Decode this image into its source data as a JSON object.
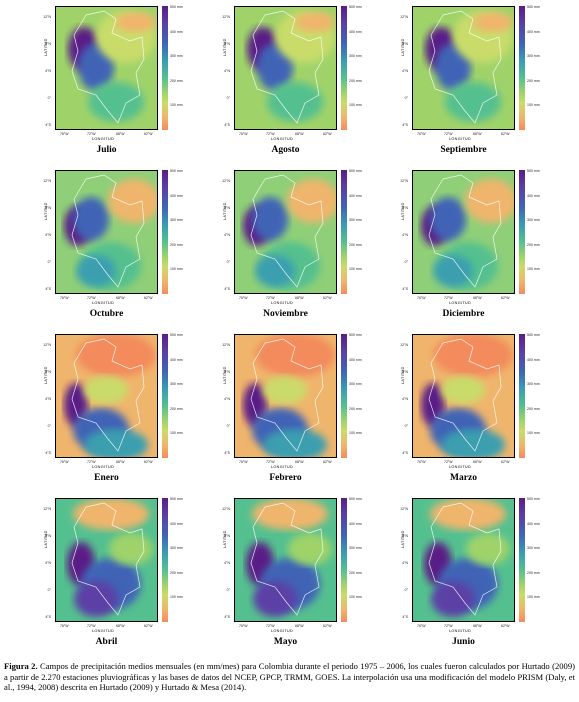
{
  "figure": {
    "colorbar_ticks": [
      "500 mm",
      "400 mm",
      "300 mm",
      "200 mm",
      "100 mm"
    ],
    "lat_ticks": [
      "12°N",
      "8°N",
      "4°N",
      "0°",
      "4°S"
    ],
    "lon_ticks": [
      "76°W",
      "72°W",
      "68°W",
      "62°W"
    ],
    "ylabel": "LATITUD",
    "xlabel": "LONGITUD",
    "panels": [
      {
        "month": "Julio",
        "scheme": "dry"
      },
      {
        "month": "Agosto",
        "scheme": "dry"
      },
      {
        "month": "Septiembre",
        "scheme": "dry"
      },
      {
        "month": "Octubre",
        "scheme": "mid"
      },
      {
        "month": "Noviembre",
        "scheme": "mid"
      },
      {
        "month": "Diciembre",
        "scheme": "mid"
      },
      {
        "month": "Enero",
        "scheme": "wet_south"
      },
      {
        "month": "Febrero",
        "scheme": "wet_south"
      },
      {
        "month": "Marzo",
        "scheme": "wet_south"
      },
      {
        "month": "Abril",
        "scheme": "wet"
      },
      {
        "month": "Mayo",
        "scheme": "wet"
      },
      {
        "month": "Junio",
        "scheme": "wet"
      }
    ]
  },
  "caption": {
    "label": "Figura 2.",
    "text": " Campos de precipitación medios mensuales (en mm/mes) para Colombia durante el periodo 1975 – 2006, los cuales fueron calculados por Hurtado (2009) a partir de 2.270 estaciones pluviográficas y las bases de datos del NCEP, GPCP, TRMM, GOES. La interpolación usa una modificación del modelo PRISM (Daly, et al., 1994, 2008) descrita en Hurtado (2009) y Hurtado & Mesa (2014)."
  }
}
